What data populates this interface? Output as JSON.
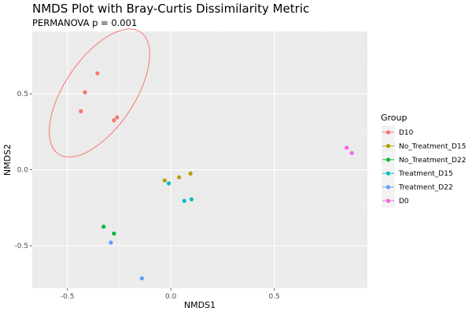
{
  "chart_data": {
    "type": "scatter",
    "title": "NMDS Plot with Bray-Curtis Dissimilarity Metric",
    "subtitle": "PERMANOVA p = 0.001",
    "xlabel": "NMDS1",
    "ylabel": "NMDS2",
    "xlim": [
      -0.67,
      0.95
    ],
    "ylim": [
      -0.78,
      0.91
    ],
    "x_ticks": [
      -0.5,
      0.0,
      0.5
    ],
    "x_tick_labels": [
      "-0.5",
      "0.0",
      "0.5"
    ],
    "y_ticks": [
      -0.5,
      0.0,
      0.5
    ],
    "y_tick_labels": [
      "-0.5",
      "0.0",
      "0.5"
    ],
    "grid": true,
    "legend": {
      "title": "Group",
      "position": "right"
    },
    "series": [
      {
        "name": "D10",
        "color": "#F8766D",
        "points": [
          [
            -0.355,
            0.635
          ],
          [
            -0.415,
            0.51
          ],
          [
            -0.435,
            0.385
          ],
          [
            -0.275,
            0.325
          ],
          [
            -0.26,
            0.345
          ]
        ]
      },
      {
        "name": "No_Treatment_D15",
        "color": "#B79F00",
        "points": [
          [
            -0.03,
            -0.07
          ],
          [
            0.04,
            -0.05
          ],
          [
            0.095,
            -0.025
          ]
        ]
      },
      {
        "name": "No_Treatment_D22",
        "color": "#00BA38",
        "points": [
          [
            -0.325,
            -0.375
          ],
          [
            -0.275,
            -0.42
          ]
        ]
      },
      {
        "name": "Treatment_D15",
        "color": "#00BFC4",
        "points": [
          [
            -0.01,
            -0.09
          ],
          [
            0.065,
            -0.205
          ],
          [
            0.1,
            -0.195
          ]
        ]
      },
      {
        "name": "Treatment_D22",
        "color": "#619CFF",
        "points": [
          [
            -0.29,
            -0.48
          ],
          [
            -0.14,
            -0.715
          ]
        ]
      },
      {
        "name": "D0",
        "color": "#F564E3",
        "points": [
          [
            0.85,
            0.145
          ],
          [
            0.875,
            0.11
          ]
        ]
      }
    ],
    "ellipses": [
      {
        "group": "D10",
        "color": "#F8766D",
        "center": [
          -0.345,
          0.505
        ],
        "rx": 0.355,
        "ry": 0.23,
        "angle_deg": -56
      }
    ]
  }
}
